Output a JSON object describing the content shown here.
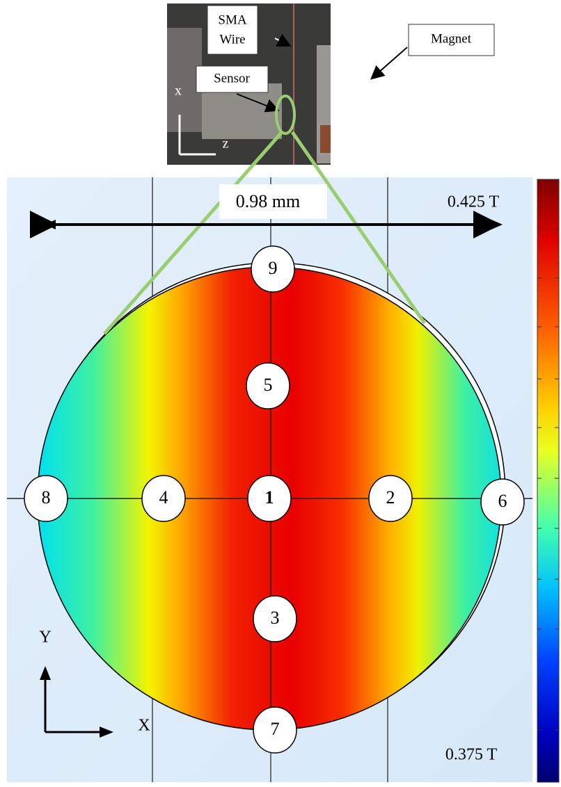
{
  "photo": {
    "wire_label": [
      "SMA",
      "Wire"
    ],
    "sensor_label": "Sensor",
    "magnet_label": "Magnet",
    "axis_x": "x",
    "axis_z": "z"
  },
  "plot": {
    "width_label": "0.98 mm",
    "max_label": "0.425 T",
    "min_label": "0.375 T",
    "axis_y": "Y",
    "axis_x": "X",
    "points": [
      "1",
      "2",
      "3",
      "4",
      "5",
      "6",
      "7",
      "8",
      "9"
    ]
  }
}
